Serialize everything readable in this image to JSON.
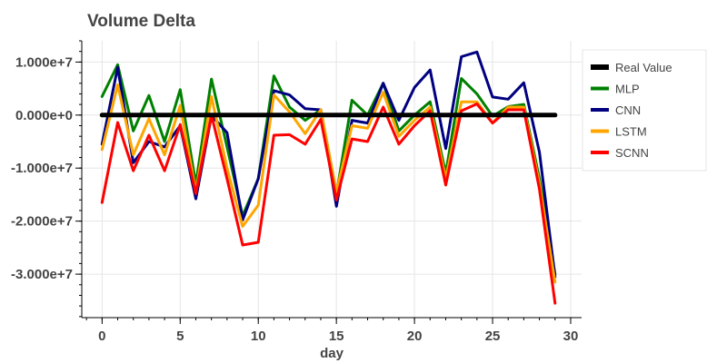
{
  "chart_data": {
    "type": "line",
    "title": "Volume Delta",
    "xlabel": "day",
    "ylabel": "",
    "xlim": [
      -1.3,
      30.7
    ],
    "ylim": [
      -38200000,
      14000000
    ],
    "x_ticks": [
      0,
      5,
      10,
      15,
      20,
      25,
      30
    ],
    "x_tick_labels": [
      "0",
      "5",
      "10",
      "15",
      "20",
      "25",
      "30"
    ],
    "y_ticks": [
      10000000,
      0,
      -10000000,
      -20000000,
      -30000000
    ],
    "y_tick_labels": [
      "1.000e+7",
      "0.000e+0",
      "-1.000e+7",
      "-2.000e+7",
      "-3.000e+7"
    ],
    "grid": true,
    "legend_position": "right",
    "x": [
      0,
      1,
      2,
      3,
      4,
      5,
      6,
      7,
      8,
      9,
      10,
      11,
      12,
      13,
      14,
      15,
      16,
      17,
      18,
      19,
      20,
      21,
      22,
      23,
      24,
      25,
      26,
      27,
      28,
      29
    ],
    "series": [
      {
        "name": "Real Value",
        "color": "#000000",
        "width": 5,
        "values": [
          0,
          0,
          0,
          0,
          0,
          0,
          0,
          0,
          0,
          0,
          0,
          0,
          0,
          0,
          0,
          0,
          0,
          0,
          0,
          0,
          0,
          0,
          0,
          0,
          0,
          0,
          0,
          0,
          0,
          0
        ]
      },
      {
        "name": "MLP",
        "color": "#008000",
        "width": 3,
        "values": [
          3500000,
          9500000,
          -3000000,
          3700000,
          -5000000,
          4800000,
          -13000000,
          6800000,
          -6000000,
          -19000000,
          -12000000,
          7400000,
          1500000,
          -1000000,
          1000000,
          -15000000,
          2800000,
          0,
          6000000,
          -3000000,
          0,
          2500000,
          -11000000,
          6900000,
          4000000,
          -200000,
          1600000,
          2000000,
          -12000000,
          -30000000
        ]
      },
      {
        "name": "CNN",
        "color": "#000080",
        "width": 3,
        "values": [
          -5500000,
          9000000,
          -9000000,
          -5000000,
          -6000000,
          -2000000,
          -15800000,
          -100000,
          -3300000,
          -19800000,
          -12000000,
          4600000,
          3800000,
          1200000,
          1000000,
          -17200000,
          -1000000,
          -1500000,
          6000000,
          -1000000,
          5200000,
          8500000,
          -6300000,
          11000000,
          11900000,
          3400000,
          3000000,
          6100000,
          -7000000,
          -30500000
        ]
      },
      {
        "name": "LSTM",
        "color": "#FFA500",
        "width": 3,
        "values": [
          -6500000,
          5700000,
          -7500000,
          -700000,
          -7500000,
          1800000,
          -14500000,
          3500000,
          -10000000,
          -21000000,
          -17000000,
          3800000,
          600000,
          -3500000,
          1000000,
          -14500000,
          -2000000,
          -2500000,
          4300000,
          -4000000,
          -1000000,
          1500000,
          -12000000,
          2500000,
          2500000,
          -1500000,
          1500000,
          1500000,
          -13000000,
          -31500000
        ]
      },
      {
        "name": "SCNN",
        "color": "#FF0000",
        "width": 3,
        "values": [
          -16500000,
          -1400000,
          -10500000,
          -3800000,
          -10500000,
          -1800000,
          -14800000,
          0,
          -12000000,
          -24500000,
          -24000000,
          -3800000,
          -3700000,
          -5500000,
          -800000,
          -16000000,
          -4500000,
          -5000000,
          1500000,
          -5500000,
          -2000000,
          800000,
          -13200000,
          800000,
          2100000,
          -1500000,
          1000000,
          1000000,
          -14000000,
          -35500000
        ]
      }
    ]
  }
}
